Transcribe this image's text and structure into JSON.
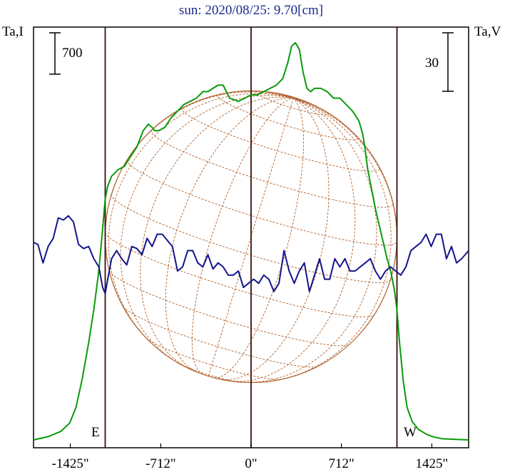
{
  "chart_data": {
    "type": "line",
    "title": "sun: 2020/08/25: 9.70[cm]",
    "left_axis_label": "Ta,I",
    "right_axis_label": "Ta,V",
    "left_scale_bar_label": "700",
    "left_scale_bar_value": 700,
    "right_scale_bar_label": "30",
    "right_scale_bar_value": 30,
    "east_label": "E",
    "west_label": "W",
    "x_unit": "arcsec",
    "xlim": [
      -1715,
      1715
    ],
    "x_ticks": [
      -1425,
      -712,
      0,
      712,
      1425
    ],
    "x_tick_labels": [
      "-1425\"",
      "-712\"",
      "0\"",
      "712\"",
      "1425\""
    ],
    "limb_x": [
      -1150,
      1150
    ],
    "disk_radius": 1150,
    "grid": false,
    "colors": {
      "intensity": "#0a9a0a",
      "polarization": "#14148c",
      "disk": "#b0602a",
      "frame": "#000000",
      "limb_lines": "#3a0e0e",
      "title": "#1b2a8a"
    },
    "series": [
      {
        "key": "intensity",
        "x": [
          -1715,
          -1600,
          -1500,
          -1430,
          -1380,
          -1330,
          -1280,
          -1240,
          -1200,
          -1170,
          -1150,
          -1130,
          -1100,
          -1050,
          -1000,
          -950,
          -900,
          -850,
          -810,
          -780,
          -760,
          -730,
          -680,
          -630,
          -580,
          -530,
          -480,
          -430,
          -380,
          -340,
          -300,
          -260,
          -220,
          -170,
          -100,
          -50,
          0,
          50,
          100,
          150,
          200,
          250,
          290,
          320,
          350,
          380,
          410,
          440,
          470,
          500,
          550,
          600,
          650,
          700,
          750,
          800,
          850,
          880,
          900,
          920,
          950,
          980,
          1010,
          1040,
          1070,
          1100,
          1130,
          1150,
          1170,
          1200,
          1230,
          1270,
          1320,
          1380,
          1430,
          1500,
          1600,
          1715
        ],
        "values": [
          0,
          50,
          130,
          260,
          500,
          950,
          1500,
          2000,
          2600,
          3250,
          3700,
          3900,
          4050,
          4150,
          4200,
          4350,
          4500,
          4750,
          4850,
          4800,
          4750,
          4750,
          4800,
          4950,
          5050,
          5150,
          5200,
          5250,
          5350,
          5350,
          5400,
          5450,
          5450,
          5250,
          5200,
          5250,
          5300,
          5300,
          5350,
          5400,
          5450,
          5550,
          5800,
          6050,
          6100,
          6000,
          5650,
          5400,
          5350,
          5400,
          5400,
          5350,
          5250,
          5250,
          5150,
          5050,
          4900,
          4700,
          4450,
          4150,
          3850,
          3550,
          3300,
          3050,
          2800,
          2600,
          2300,
          2000,
          1500,
          900,
          500,
          280,
          160,
          90,
          50,
          20,
          10,
          0
        ],
        "ylim": [
          0,
          6100
        ]
      },
      {
        "key": "polarization",
        "x": [
          -1715,
          -1680,
          -1640,
          -1600,
          -1560,
          -1520,
          -1480,
          -1440,
          -1400,
          -1360,
          -1320,
          -1280,
          -1240,
          -1200,
          -1170,
          -1150,
          -1130,
          -1100,
          -1060,
          -1020,
          -980,
          -940,
          -900,
          -860,
          -820,
          -780,
          -740,
          -700,
          -660,
          -620,
          -580,
          -540,
          -500,
          -460,
          -420,
          -380,
          -340,
          -300,
          -260,
          -220,
          -180,
          -140,
          -100,
          -60,
          -20,
          20,
          60,
          100,
          140,
          180,
          220,
          260,
          300,
          340,
          380,
          420,
          460,
          500,
          540,
          580,
          620,
          660,
          700,
          740,
          780,
          820,
          860,
          900,
          940,
          980,
          1020,
          1060,
          1100,
          1140,
          1180,
          1220,
          1260,
          1300,
          1340,
          1380,
          1420,
          1460,
          1500,
          1540,
          1580,
          1620,
          1660,
          1715
        ],
        "values": [
          0,
          -1,
          -10,
          -2,
          2,
          12,
          11,
          13,
          10,
          -1,
          -3,
          -2,
          -8,
          -12,
          -22,
          -25,
          -18,
          -8,
          -4,
          -8,
          -11,
          -2,
          -3,
          -6,
          2,
          -2,
          4,
          4,
          1,
          -2,
          -14,
          -12,
          -4,
          -4,
          -10,
          -12,
          -6,
          -13,
          -10,
          -12,
          -16,
          -16,
          -14,
          -22,
          -20,
          -18,
          -20,
          -16,
          -18,
          -24,
          -20,
          -4,
          -14,
          -20,
          -14,
          -10,
          -24,
          -16,
          -8,
          -18,
          -18,
          -8,
          -12,
          -8,
          -14,
          -14,
          -12,
          -10,
          -8,
          -14,
          -18,
          -14,
          -12,
          -14,
          -16,
          -12,
          -4,
          -2,
          0,
          4,
          -2,
          4,
          4,
          -8,
          -2,
          -10,
          -8,
          -4
        ],
        "ylim": [
          -60,
          60
        ]
      }
    ]
  }
}
